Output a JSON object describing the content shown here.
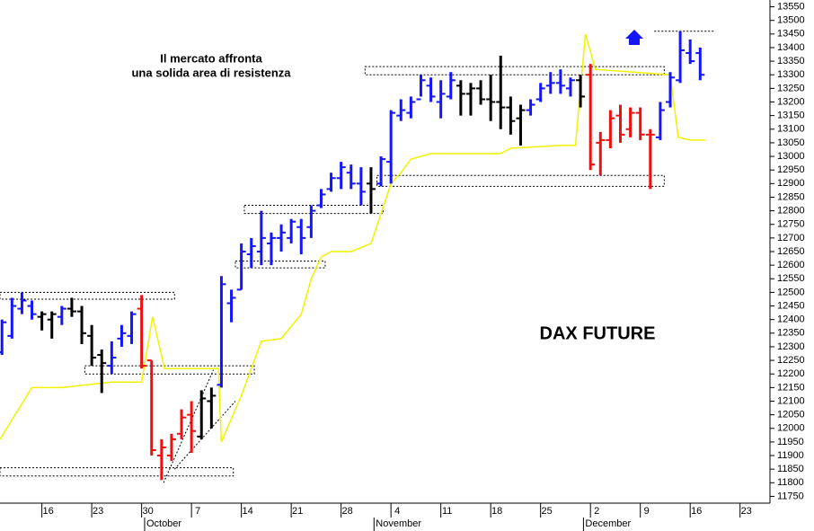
{
  "chart_data": {
    "type": "ohlc",
    "title": "DAX FUTURE",
    "annotations": [
      "Il mercato affronta",
      "una solida area di resistenza"
    ],
    "x": [
      -4,
      -3,
      -2,
      -1,
      0,
      1,
      2,
      3,
      4,
      5,
      6,
      7,
      8,
      9,
      10,
      11,
      12,
      13,
      14,
      15,
      16,
      17,
      18,
      19,
      20,
      21,
      22,
      23,
      24,
      25,
      26,
      27,
      28,
      29,
      30,
      31,
      32,
      33,
      34,
      35,
      36,
      37,
      38,
      39,
      40,
      41,
      42,
      43,
      44,
      45,
      46,
      47,
      48,
      49,
      50,
      51,
      52,
      53,
      54,
      55,
      56,
      57,
      58,
      59,
      60,
      61,
      62,
      63,
      64,
      65,
      66
    ],
    "open": [
      12280,
      12340,
      12440,
      12450,
      12410,
      12400,
      12410,
      12440,
      12430,
      12340,
      12270,
      12230,
      12330,
      12340,
      12440,
      12250,
      11900,
      11900,
      11980,
      12050,
      11970,
      12100,
      12160,
      12460,
      12510,
      12640,
      12650,
      12680,
      12700,
      12700,
      12740,
      12740,
      12820,
      12880,
      12920,
      12940,
      12900,
      12900,
      12900,
      12980,
      13150,
      13160,
      13210,
      13260,
      13200,
      13220,
      13260,
      13230,
      13250,
      13210,
      13200,
      13180,
      13140,
      13170,
      13210,
      13260,
      13270,
      13250,
      13280,
      13300,
      13050,
      13060,
      13150,
      13100,
      13160,
      13080,
      13070,
      13200,
      13280,
      13380,
      13380
    ],
    "high": [
      12400,
      12480,
      12500,
      12470,
      12430,
      12430,
      12450,
      12480,
      12450,
      12380,
      12290,
      12320,
      12380,
      12430,
      12490,
      12250,
      11960,
      11980,
      12070,
      12100,
      12140,
      12150,
      12560,
      12510,
      12680,
      12700,
      12800,
      12720,
      12750,
      12770,
      12770,
      12820,
      12880,
      12940,
      12980,
      12970,
      12960,
      12960,
      13000,
      13170,
      13210,
      13220,
      13300,
      13290,
      13280,
      13310,
      13280,
      13270,
      13280,
      13300,
      13370,
      13220,
      13190,
      13210,
      13270,
      13310,
      13320,
      13290,
      13300,
      13340,
      13090,
      13170,
      13190,
      13180,
      13180,
      13100,
      13200,
      13310,
      13460,
      13430,
      13400
    ],
    "low": [
      12270,
      12330,
      12420,
      12400,
      12360,
      12330,
      12380,
      12410,
      12310,
      12230,
      12130,
      12200,
      12300,
      12310,
      12220,
      11900,
      11810,
      11880,
      11960,
      11910,
      11960,
      12000,
      12150,
      12390,
      12510,
      12590,
      12600,
      12600,
      12650,
      12680,
      12640,
      12700,
      12810,
      12870,
      12880,
      12880,
      12820,
      12790,
      12890,
      12900,
      13130,
      13140,
      13220,
      13200,
      13140,
      13210,
      13150,
      13150,
      13190,
      13130,
      13100,
      13080,
      13040,
      13150,
      13200,
      13230,
      13230,
      13220,
      13180,
      12950,
      12930,
      13030,
      13050,
      13070,
      13060,
      12880,
      13060,
      13180,
      13270,
      13340,
      13280
    ],
    "close": [
      12390,
      12450,
      12470,
      12420,
      12420,
      12420,
      12440,
      12430,
      12350,
      12260,
      12240,
      12260,
      12350,
      12420,
      12230,
      11920,
      11930,
      11960,
      12040,
      11990,
      12110,
      12120,
      12530,
      12480,
      12650,
      12670,
      12700,
      12700,
      12720,
      12760,
      12700,
      12800,
      12860,
      12920,
      12960,
      12900,
      12870,
      12880,
      12990,
      13160,
      13170,
      13200,
      13280,
      13220,
      13230,
      13280,
      13230,
      13250,
      13210,
      13200,
      13180,
      13130,
      13170,
      13190,
      13250,
      13270,
      13260,
      13280,
      13220,
      12970,
      13060,
      13140,
      13080,
      13160,
      13080,
      13080,
      13170,
      13290,
      13390,
      13350,
      13300
    ],
    "bar_colors": [
      "#1414ff",
      "#1414ff",
      "#1414ff",
      "#1414ff",
      "#000000",
      "#000000",
      "#1414ff",
      "#000000",
      "#000000",
      "#000000",
      "#000000",
      "#1414ff",
      "#1414ff",
      "#1414ff",
      "#ee1010",
      "#ee1010",
      "#ee1010",
      "#ee1010",
      "#ee1010",
      "#ee1010",
      "#000000",
      "#000000",
      "#1414ff",
      "#1414ff",
      "#1414ff",
      "#1414ff",
      "#1414ff",
      "#1414ff",
      "#1414ff",
      "#1414ff",
      "#1414ff",
      "#1414ff",
      "#1414ff",
      "#1414ff",
      "#1414ff",
      "#1414ff",
      "#1414ff",
      "#000000",
      "#1414ff",
      "#1414ff",
      "#1414ff",
      "#1414ff",
      "#1414ff",
      "#1414ff",
      "#1414ff",
      "#1414ff",
      "#000000",
      "#000000",
      "#000000",
      "#000000",
      "#000000",
      "#000000",
      "#000000",
      "#1414ff",
      "#1414ff",
      "#1414ff",
      "#1414ff",
      "#1414ff",
      "#000000",
      "#ee1010",
      "#ee1010",
      "#ee1010",
      "#ee1010",
      "#ee1010",
      "#ee1010",
      "#ee1010",
      "#1414ff",
      "#1414ff",
      "#1414ff",
      "#1414ff",
      "#1414ff"
    ],
    "overlay": {
      "color": "#f2f200",
      "x": [
        -4.2,
        -1,
        2,
        7,
        10,
        11.1,
        12.3,
        17.7,
        18,
        20,
        22,
        24,
        26,
        27,
        28,
        29,
        31,
        33,
        35,
        36,
        37,
        39,
        46,
        47,
        52,
        53.5,
        54.5,
        55.5,
        63,
        63.8,
        65,
        66.5
      ],
      "values": [
        11960,
        12150,
        12150,
        12170,
        12170,
        12410,
        12220,
        12220,
        11950,
        12120,
        12320,
        12330,
        12420,
        12550,
        12630,
        12650,
        12650,
        12680,
        12900,
        12940,
        12990,
        13010,
        13010,
        13030,
        13040,
        13040,
        13450,
        13320,
        13300,
        13070,
        13060,
        13060
      ]
    },
    "zones": [
      {
        "x": [
          -4.2,
          13.3
        ],
        "y": [
          12475,
          12500
        ]
      },
      {
        "x": [
          4.3,
          21.3
        ],
        "y": [
          12200,
          12230
        ]
      },
      {
        "x": [
          -4.2,
          19.2
        ],
        "y": [
          11825,
          11855
        ]
      },
      {
        "x": [
          19.4,
          28.4
        ],
        "y": [
          12590,
          12615
        ]
      },
      {
        "x": [
          20.3,
          34.2
        ],
        "y": [
          12790,
          12820
        ]
      },
      {
        "x": [
          32.4,
          62.4
        ],
        "y": [
          13300,
          13330
        ]
      },
      {
        "x": [
          33.6,
          62.4
        ],
        "y": [
          12890,
          12930
        ]
      }
    ],
    "trendlines": [
      {
        "x": [
          12.2,
          17.2
        ],
        "y": [
          11800,
          12215
        ]
      },
      {
        "x": [
          13.3,
          19.4
        ],
        "y": [
          11850,
          12100
        ]
      },
      {
        "x": [
          61.4,
          67.5
        ],
        "y": [
          13460,
          13460
        ]
      }
    ],
    "xlim": [
      -4.2,
      73
    ],
    "ylim": [
      11725,
      13575
    ],
    "yticks": [
      11750,
      11800,
      11850,
      11900,
      11950,
      12000,
      12050,
      12100,
      12150,
      12200,
      12250,
      12300,
      12350,
      12400,
      12450,
      12500,
      12550,
      12600,
      12650,
      12700,
      12750,
      12800,
      12850,
      12900,
      12950,
      13000,
      13050,
      13100,
      13150,
      13200,
      13250,
      13300,
      13350,
      13400,
      13450,
      13500,
      13550
    ],
    "xticks": [
      {
        "value": 0,
        "label": "16"
      },
      {
        "value": 5,
        "label": "23"
      },
      {
        "value": 10,
        "label": "30"
      },
      {
        "value": 15,
        "label": "7"
      },
      {
        "value": 20,
        "label": "14"
      },
      {
        "value": 25,
        "label": "21"
      },
      {
        "value": 30,
        "label": "28"
      },
      {
        "value": 35,
        "label": "4"
      },
      {
        "value": 40,
        "label": "11"
      },
      {
        "value": 45,
        "label": "18"
      },
      {
        "value": 50,
        "label": "25"
      },
      {
        "value": 55,
        "label": "2"
      },
      {
        "value": 60,
        "label": "9"
      },
      {
        "value": 65,
        "label": "16"
      },
      {
        "value": 70,
        "label": "23"
      }
    ],
    "month_ticks": [
      {
        "value": 10.3,
        "label": "October"
      },
      {
        "value": 33.3,
        "label": "November"
      },
      {
        "value": 54.3,
        "label": "December"
      }
    ]
  }
}
